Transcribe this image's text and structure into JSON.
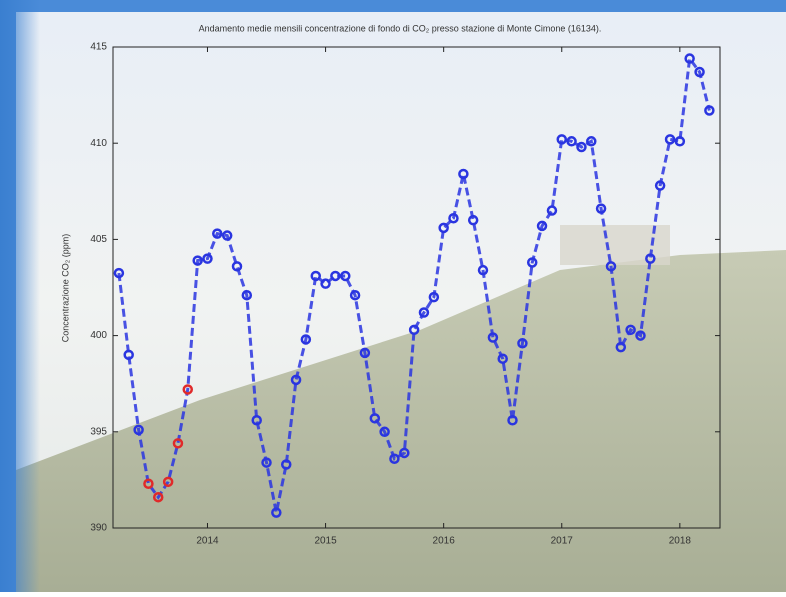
{
  "chart_data": {
    "type": "line",
    "title": "Andamento medie mensili concentrazione di fondo di CO₂ presso stazione di Monte Cimone (16134).",
    "y_label": "Concentrazione CO₂ (ppm)",
    "x": [
      2013.25,
      2013.333,
      2013.417,
      2013.5,
      2013.583,
      2013.667,
      2013.75,
      2013.833,
      2013.917,
      2014.0,
      2014.083,
      2014.167,
      2014.25,
      2014.333,
      2014.417,
      2014.5,
      2014.583,
      2014.667,
      2014.75,
      2014.833,
      2014.917,
      2015.0,
      2015.083,
      2015.167,
      2015.25,
      2015.333,
      2015.417,
      2015.5,
      2015.583,
      2015.667,
      2015.75,
      2015.833,
      2015.917,
      2016.0,
      2016.083,
      2016.167,
      2016.25,
      2016.333,
      2016.417,
      2016.5,
      2016.583,
      2016.667,
      2016.75,
      2016.833,
      2016.917,
      2017.0,
      2017.083,
      2017.167,
      2017.25,
      2017.333,
      2017.417,
      2017.5,
      2017.583,
      2017.667,
      2017.75,
      2017.833,
      2017.917,
      2018.0,
      2018.083,
      2018.167,
      2018.25
    ],
    "series": [
      {
        "color": "#2a35e0",
        "values": [
          403.25,
          399.0,
          395.1,
          392.3,
          391.6,
          392.4,
          394.4,
          397.2,
          403.9,
          404.0,
          405.3,
          405.2,
          403.6,
          402.1,
          395.6,
          393.4,
          390.8,
          393.3,
          397.7,
          399.8,
          403.1,
          402.7,
          403.1,
          403.1,
          402.1,
          399.1,
          395.7,
          395.0,
          393.6,
          393.9,
          400.3,
          401.2,
          402.0,
          405.6,
          406.1,
          408.4,
          406.0,
          403.4,
          399.9,
          398.8,
          395.6,
          399.6,
          403.8,
          405.7,
          406.5,
          410.2,
          410.1,
          409.8,
          410.1,
          406.6,
          403.6,
          399.4,
          400.3,
          400.0,
          404.0,
          407.8,
          410.2,
          410.1,
          414.4,
          413.7,
          411.7
        ],
        "marker_colors": [
          "#2a35e0",
          "#2a35e0",
          "#2a35e0",
          "#e02a2a",
          "#e02a2a",
          "#e02a2a",
          "#e02a2a",
          "#e02a2a",
          "#2a35e0",
          "#2a35e0",
          "#2a35e0",
          "#2a35e0",
          "#2a35e0",
          "#2a35e0",
          "#2a35e0",
          "#2a35e0",
          "#2a35e0",
          "#2a35e0",
          "#2a35e0",
          "#2a35e0",
          "#2a35e0",
          "#2a35e0",
          "#2a35e0",
          "#2a35e0",
          "#2a35e0",
          "#2a35e0",
          "#2a35e0",
          "#2a35e0",
          "#2a35e0",
          "#2a35e0",
          "#2a35e0",
          "#2a35e0",
          "#2a35e0",
          "#2a35e0",
          "#2a35e0",
          "#2a35e0",
          "#2a35e0",
          "#2a35e0",
          "#2a35e0",
          "#2a35e0",
          "#2a35e0",
          "#2a35e0",
          "#2a35e0",
          "#2a35e0",
          "#2a35e0",
          "#2a35e0",
          "#2a35e0",
          "#2a35e0",
          "#2a35e0",
          "#2a35e0",
          "#2a35e0",
          "#2a35e0",
          "#2a35e0",
          "#2a35e0",
          "#2a35e0",
          "#2a35e0",
          "#2a35e0",
          "#2a35e0",
          "#2a35e0",
          "#2a35e0",
          "#2a35e0"
        ]
      }
    ],
    "xlim": [
      2013.2,
      2018.34
    ],
    "xticks": [
      2014,
      2015,
      2016,
      2017,
      2018
    ],
    "ylim": [
      390,
      415
    ],
    "yticks": [
      390,
      395,
      400,
      405,
      410,
      415
    ]
  }
}
